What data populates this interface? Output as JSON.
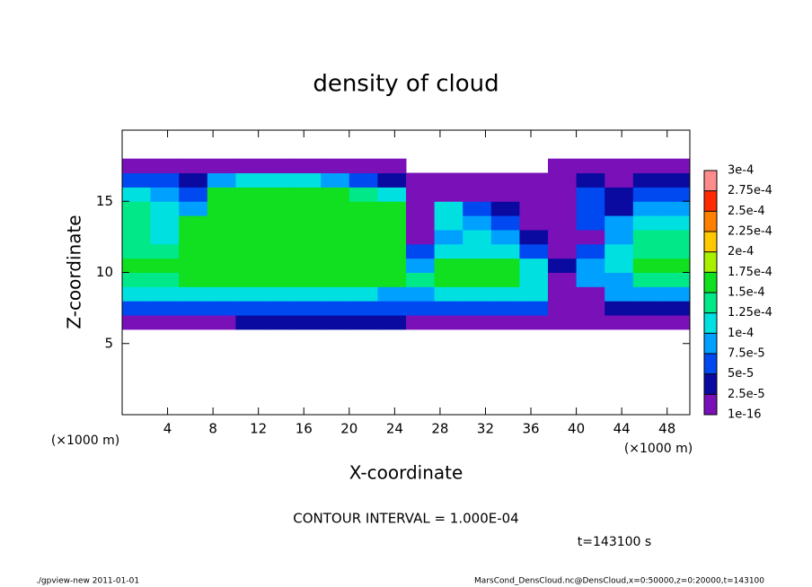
{
  "chart_data": {
    "type": "heatmap",
    "title": "density of cloud",
    "xlabel": "X-coordinate",
    "ylabel": "Z-coordinate",
    "x_unit": "(×1000 m)",
    "y_unit": "(×1000 m)",
    "xlim": [
      0,
      50
    ],
    "ylim": [
      0,
      20
    ],
    "xticks": [
      4,
      8,
      12,
      16,
      20,
      24,
      28,
      32,
      36,
      40,
      44,
      48
    ],
    "yticks": [
      5,
      10,
      15
    ],
    "x_bins": [
      0,
      2.5,
      5,
      7.5,
      10,
      12.5,
      15,
      17.5,
      20,
      22.5,
      25,
      27.5,
      30,
      32.5,
      35,
      37.5,
      40,
      42.5,
      45,
      47.5,
      50
    ],
    "y_bins": [
      6,
      7,
      8,
      9,
      10,
      11,
      12,
      13,
      14,
      15,
      16,
      17,
      18
    ],
    "values": [
      [
        1e-05,
        1e-05,
        1e-05,
        1e-05,
        3e-05,
        3e-05,
        3e-05,
        3e-05,
        3e-05,
        3e-05,
        1e-05,
        1e-05,
        1e-05,
        1e-05,
        1e-05,
        1e-05,
        1e-05,
        1e-05,
        1e-05,
        1e-05
      ],
      [
        6e-05,
        6e-05,
        6e-05,
        7e-05,
        7e-05,
        7e-05,
        7e-05,
        7e-05,
        7e-05,
        7e-05,
        7e-05,
        7e-05,
        7e-05,
        7e-05,
        7e-05,
        2e-05,
        2e-05,
        4e-05,
        4e-05,
        4e-05
      ],
      [
        0.00011,
        0.00011,
        0.00012,
        0.00012,
        0.00012,
        0.00012,
        0.00012,
        0.00012,
        0.00012,
        9e-05,
        9e-05,
        0.00012,
        0.00012,
        0.00012,
        0.00012,
        1e-05,
        1e-05,
        8e-05,
        8e-05,
        8e-05
      ],
      [
        0.00013,
        0.00013,
        0.00016,
        0.00016,
        0.00016,
        0.00016,
        0.00016,
        0.00016,
        0.00016,
        0.00016,
        0.00013,
        0.00016,
        0.00016,
        0.00016,
        0.00012,
        1e-05,
        8e-05,
        9e-05,
        0.00013,
        0.00013
      ],
      [
        0.00015,
        0.00015,
        0.00017,
        0.00017,
        0.00017,
        0.00017,
        0.00017,
        0.00017,
        0.00017,
        0.00017,
        9e-05,
        0.00016,
        0.00016,
        0.00016,
        0.0001,
        3e-05,
        9e-05,
        0.0001,
        0.00015,
        0.00015
      ],
      [
        0.00014,
        0.00014,
        0.00017,
        0.00017,
        0.00017,
        0.00017,
        0.00017,
        0.00017,
        0.00017,
        0.00017,
        5e-05,
        0.00011,
        0.00011,
        0.0001,
        6e-05,
        2e-05,
        6e-05,
        0.0001,
        0.00014,
        0.00014
      ],
      [
        0.00013,
        0.00011,
        0.00017,
        0.00017,
        0.00017,
        0.00017,
        0.00017,
        0.00017,
        0.00017,
        0.00017,
        2e-05,
        8e-05,
        0.0001,
        8e-05,
        4e-05,
        1e-05,
        2e-05,
        8e-05,
        0.00013,
        0.00013
      ],
      [
        0.00014,
        0.0001,
        0.00017,
        0.00017,
        0.00017,
        0.00017,
        0.00017,
        0.00017,
        0.00017,
        0.00016,
        1e-05,
        0.0001,
        9e-05,
        5e-05,
        2e-05,
        1e-05,
        5e-05,
        8e-05,
        0.00012,
        0.00012
      ],
      [
        0.00013,
        0.00011,
        9e-05,
        0.00016,
        0.00016,
        0.00016,
        0.00016,
        0.00016,
        0.00016,
        0.00015,
        1e-05,
        0.00011,
        6e-05,
        3e-05,
        1e-05,
        1e-05,
        6e-05,
        4e-05,
        8e-05,
        9e-05
      ],
      [
        0.0001,
        8e-05,
        6e-05,
        0.00016,
        0.00016,
        0.00016,
        0.00016,
        0.00016,
        0.00014,
        0.00012,
        1e-05,
        1e-05,
        1e-05,
        1e-05,
        1e-05,
        1e-05,
        5e-05,
        3e-05,
        5e-05,
        6e-05
      ],
      [
        6e-05,
        5e-05,
        3e-05,
        9e-05,
        0.00012,
        0.00012,
        0.00012,
        9e-05,
        6e-05,
        3e-05,
        1e-05,
        1e-05,
        1e-05,
        1e-05,
        1e-05,
        1e-05,
        4e-05,
        2e-05,
        3e-05,
        3e-05
      ],
      [
        1e-05,
        1e-05,
        1e-05,
        1e-05,
        1e-05,
        1e-05,
        1e-05,
        1e-05,
        1e-05,
        1e-05,
        null,
        null,
        null,
        null,
        null,
        1e-05,
        1e-05,
        1e-05,
        1e-05,
        1e-05
      ]
    ],
    "colorbar": {
      "levels": [
        {
          "value": 1e-16,
          "label": "1e-16"
        },
        {
          "value": 2.5e-05,
          "label": "2.5e-5"
        },
        {
          "value": 5e-05,
          "label": "5e-5"
        },
        {
          "value": 7.5e-05,
          "label": "7.5e-5"
        },
        {
          "value": 0.0001,
          "label": "1e-4"
        },
        {
          "value": 0.000125,
          "label": "1.25e-4"
        },
        {
          "value": 0.00015,
          "label": "1.5e-4"
        },
        {
          "value": 0.000175,
          "label": "1.75e-4"
        },
        {
          "value": 0.0002,
          "label": "2e-4"
        },
        {
          "value": 0.000225,
          "label": "2.25e-4"
        },
        {
          "value": 0.00025,
          "label": "2.5e-4"
        },
        {
          "value": 0.000275,
          "label": "2.75e-4"
        },
        {
          "value": 0.0003,
          "label": "3e-4"
        }
      ],
      "colors": [
        "#7a10b8",
        "#0a0aa0",
        "#0048f0",
        "#00a0ff",
        "#00e0e0",
        "#00e888",
        "#10e020",
        "#a8f000",
        "#ffc800",
        "#ff8000",
        "#ff2a00",
        "#ff8c8c"
      ]
    },
    "contour_interval": "CONTOUR INTERVAL = 1.000E-04",
    "time_label": "t=143100 s",
    "footer_left": "./gpview-new   2011-01-01",
    "footer_right": "MarsCond_DensCloud.nc@DensCloud,x=0:50000,z=0:20000,t=143100"
  }
}
